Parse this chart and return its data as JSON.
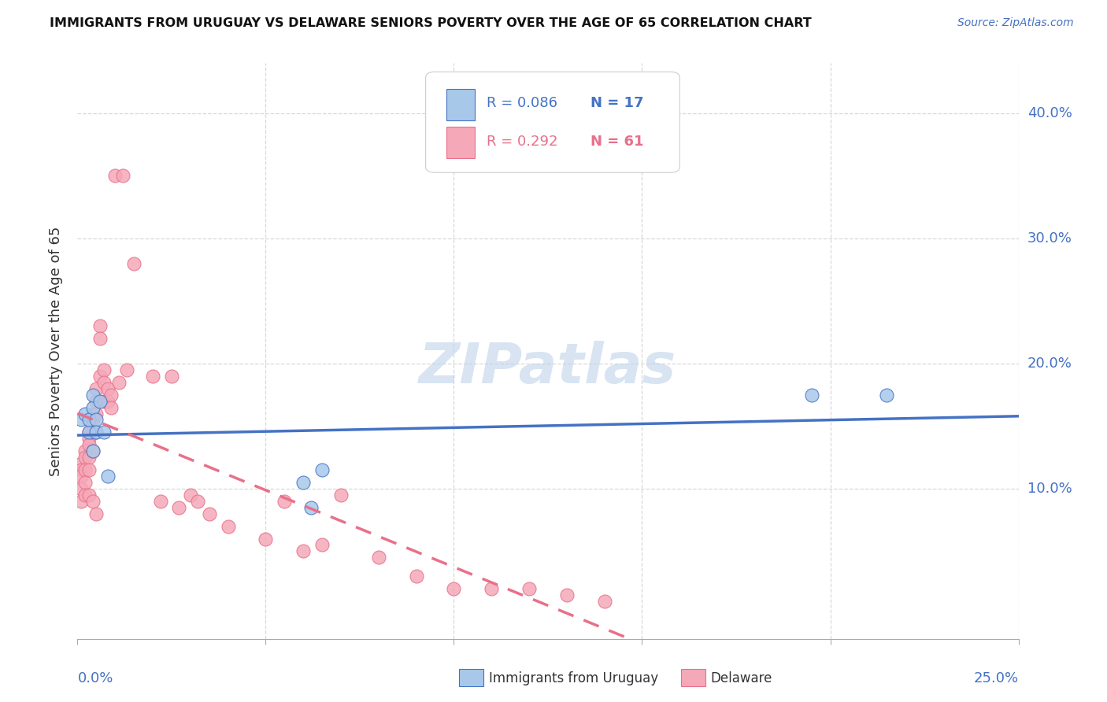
{
  "title": "IMMIGRANTS FROM URUGUAY VS DELAWARE SENIORS POVERTY OVER THE AGE OF 65 CORRELATION CHART",
  "source": "Source: ZipAtlas.com",
  "ylabel": "Seniors Poverty Over the Age of 65",
  "ytick_labels": [
    "10.0%",
    "20.0%",
    "30.0%",
    "40.0%"
  ],
  "ytick_values": [
    0.1,
    0.2,
    0.3,
    0.4
  ],
  "xlim": [
    0.0,
    0.25
  ],
  "ylim": [
    -0.02,
    0.44
  ],
  "legend_r1": "R = 0.086",
  "legend_n1": "N = 17",
  "legend_r2": "R = 0.292",
  "legend_n2": "N = 61",
  "color_uruguay": "#a8c8ea",
  "color_delaware": "#f5a8b8",
  "color_line_uruguay": "#4472c4",
  "color_line_delaware": "#e8708a",
  "watermark_text": "ZIPatlas",
  "uruguay_x": [
    0.001,
    0.002,
    0.003,
    0.003,
    0.004,
    0.004,
    0.004,
    0.005,
    0.005,
    0.006,
    0.007,
    0.008,
    0.06,
    0.062,
    0.065,
    0.195,
    0.215
  ],
  "uruguay_y": [
    0.155,
    0.16,
    0.145,
    0.155,
    0.13,
    0.165,
    0.175,
    0.155,
    0.145,
    0.17,
    0.145,
    0.11,
    0.105,
    0.085,
    0.115,
    0.175,
    0.175
  ],
  "delaware_x": [
    0.001,
    0.001,
    0.001,
    0.001,
    0.001,
    0.002,
    0.002,
    0.002,
    0.002,
    0.002,
    0.003,
    0.003,
    0.003,
    0.003,
    0.003,
    0.003,
    0.004,
    0.004,
    0.004,
    0.004,
    0.004,
    0.005,
    0.005,
    0.005,
    0.005,
    0.005,
    0.006,
    0.006,
    0.006,
    0.007,
    0.007,
    0.007,
    0.008,
    0.008,
    0.009,
    0.009,
    0.01,
    0.011,
    0.012,
    0.013,
    0.015,
    0.02,
    0.022,
    0.025,
    0.027,
    0.03,
    0.032,
    0.035,
    0.04,
    0.05,
    0.055,
    0.06,
    0.065,
    0.07,
    0.08,
    0.09,
    0.1,
    0.11,
    0.12,
    0.13,
    0.14
  ],
  "delaware_y": [
    0.12,
    0.115,
    0.11,
    0.1,
    0.09,
    0.13,
    0.125,
    0.115,
    0.105,
    0.095,
    0.145,
    0.14,
    0.135,
    0.125,
    0.115,
    0.095,
    0.16,
    0.155,
    0.145,
    0.13,
    0.09,
    0.18,
    0.17,
    0.16,
    0.145,
    0.08,
    0.23,
    0.22,
    0.19,
    0.195,
    0.185,
    0.17,
    0.18,
    0.17,
    0.175,
    0.165,
    0.35,
    0.185,
    0.35,
    0.195,
    0.28,
    0.19,
    0.09,
    0.19,
    0.085,
    0.095,
    0.09,
    0.08,
    0.07,
    0.06,
    0.09,
    0.05,
    0.055,
    0.095,
    0.045,
    0.03,
    0.02,
    0.02,
    0.02,
    0.015,
    0.01
  ],
  "grid_color": "#d8d8d8",
  "xgrid_ticks": [
    0.05,
    0.1,
    0.15,
    0.2,
    0.25
  ],
  "ygrid_ticks": [
    0.1,
    0.2,
    0.3,
    0.4
  ]
}
